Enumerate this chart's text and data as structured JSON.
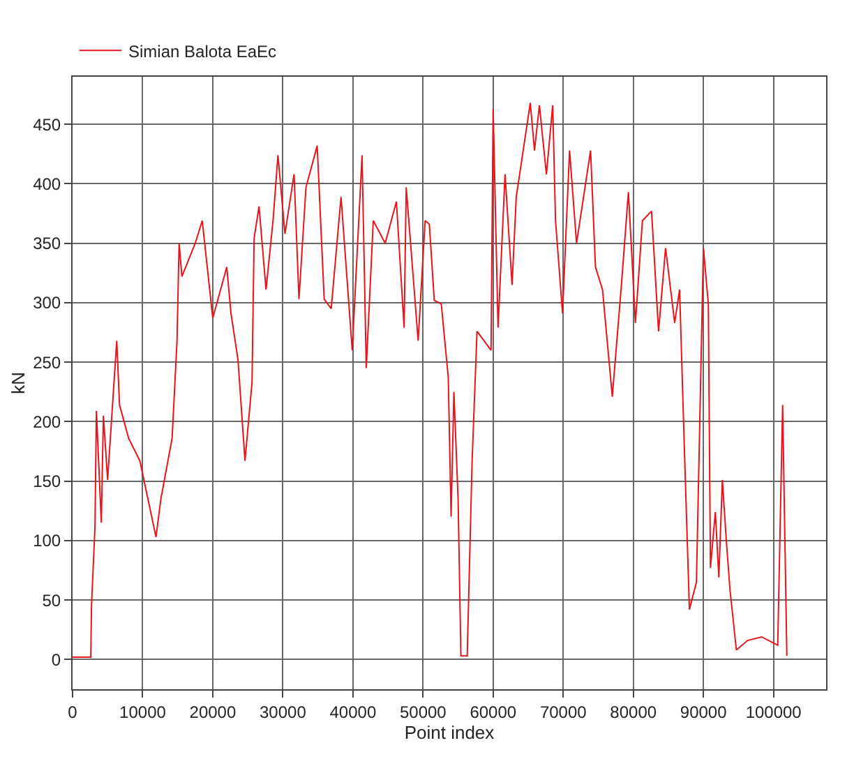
{
  "chart_data": {
    "type": "line",
    "xlabel": "Point index",
    "ylabel": "kN",
    "xlim": [
      0,
      107500
    ],
    "ylim": [
      -25,
      490
    ],
    "xticks": [
      0,
      10000,
      20000,
      30000,
      40000,
      50000,
      60000,
      70000,
      80000,
      90000,
      100000
    ],
    "yticks": [
      0,
      50,
      100,
      150,
      200,
      250,
      300,
      350,
      400,
      450
    ],
    "grid": true,
    "legend": "top left",
    "marker": "none",
    "line_style": "solid",
    "series": [
      {
        "name": "Simian Balota EaEc",
        "color": "#e8141b",
        "x": [
          0,
          2600,
          2700,
          3200,
          3400,
          4100,
          4400,
          5000,
          6300,
          6700,
          8000,
          9600,
          11900,
          12600,
          14200,
          14900,
          15200,
          15600,
          17500,
          18500,
          20000,
          22000,
          22600,
          23600,
          24600,
          25600,
          25900,
          26600,
          27600,
          28600,
          29300,
          30300,
          31600,
          32300,
          33300,
          34900,
          35900,
          36900,
          38300,
          39900,
          41300,
          41900,
          42900,
          44600,
          46200,
          47300,
          47600,
          49300,
          50300,
          50900,
          51600,
          52600,
          53600,
          54000,
          54400,
          55000,
          55400,
          56300,
          57000,
          57700,
          59700,
          60000,
          60700,
          61700,
          62700,
          63300,
          65300,
          65900,
          66600,
          67600,
          68500,
          68900,
          69900,
          70900,
          71900,
          73900,
          74600,
          75600,
          77000,
          78300,
          79300,
          80300,
          81300,
          82600,
          83600,
          84600,
          85900,
          86600,
          87300,
          88000,
          89000,
          90000,
          90700,
          91000,
          91700,
          92200,
          92700,
          93300,
          93800,
          94700,
          96300,
          98300,
          100600,
          101300,
          101900
        ],
        "values": [
          2,
          2,
          45,
          112,
          209,
          115,
          205,
          151,
          268,
          214,
          186,
          167,
          103,
          135,
          186,
          268,
          350,
          322,
          350,
          369,
          287,
          330,
          291,
          252,
          167,
          233,
          354,
          381,
          311,
          369,
          424,
          358,
          408,
          303,
          397,
          432,
          303,
          295,
          389,
          260,
          424,
          245,
          369,
          350,
          385,
          279,
          397,
          268,
          369,
          366,
          302,
          299,
          237,
          120,
          225,
          135,
          3,
          3,
          167,
          276,
          260,
          463,
          279,
          408,
          315,
          389,
          468,
          428,
          466,
          408,
          466,
          369,
          291,
          428,
          350,
          428,
          330,
          311,
          221,
          315,
          393,
          283,
          369,
          377,
          276,
          346,
          283,
          311,
          174,
          42,
          65,
          346,
          299,
          77,
          124,
          69,
          151,
          97,
          58,
          8,
          16,
          19,
          12,
          214,
          3
        ]
      }
    ]
  }
}
